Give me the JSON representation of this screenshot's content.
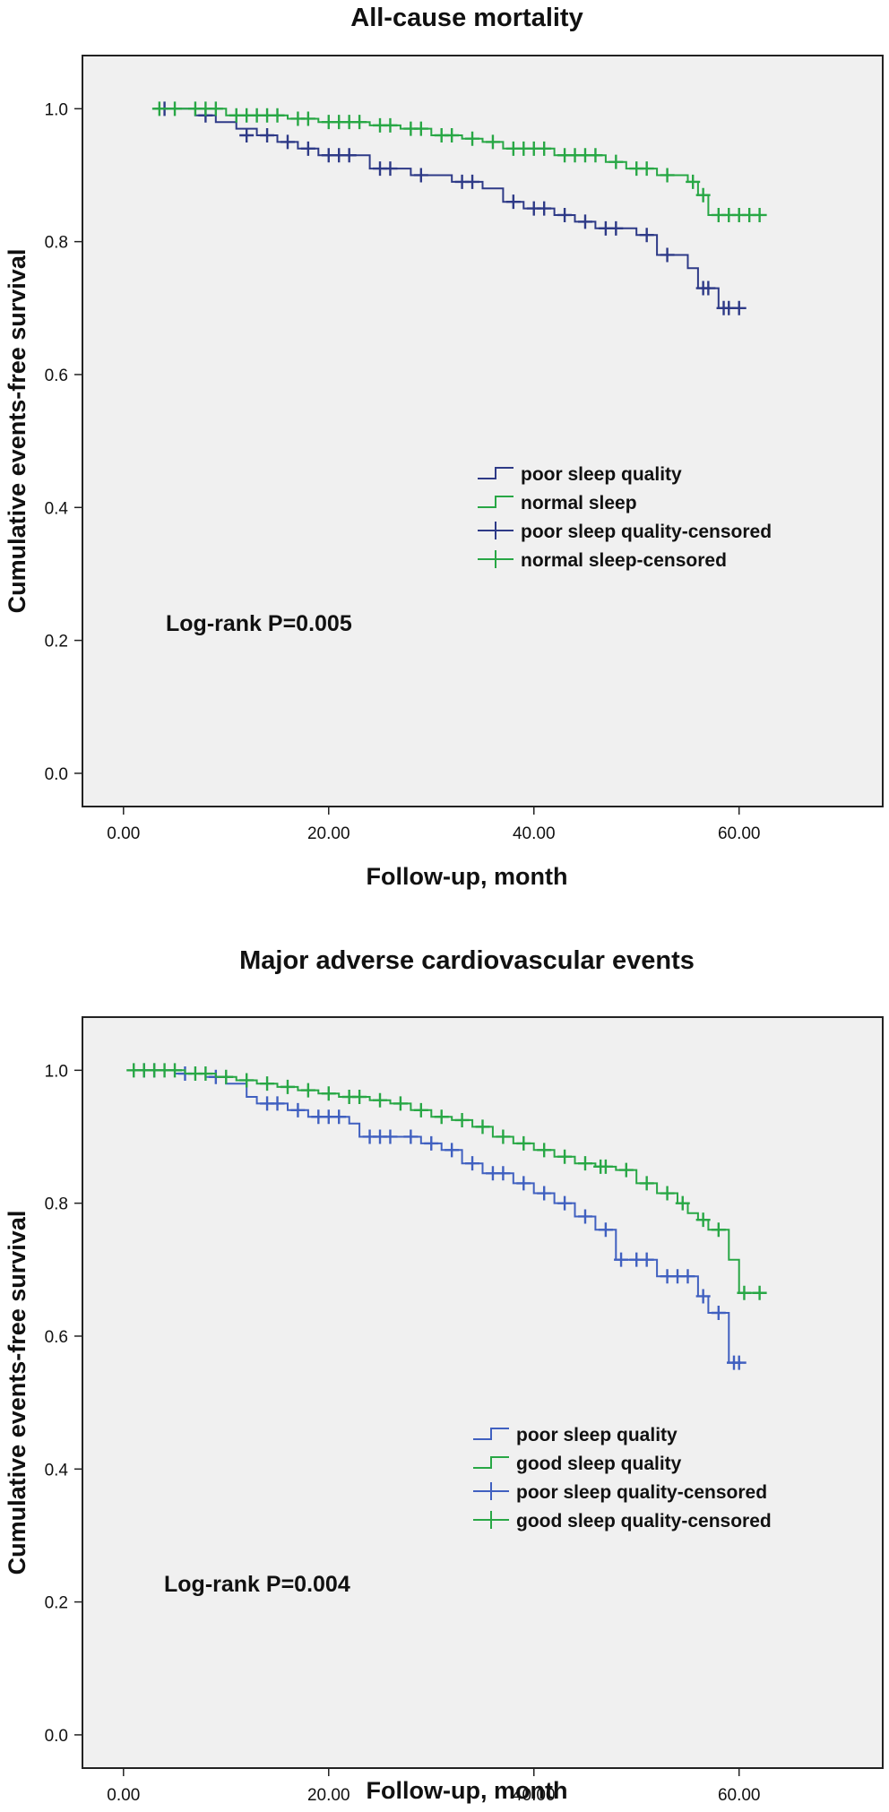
{
  "chart_data": [
    {
      "type": "line",
      "subtype": "kaplan-meier",
      "title": "All-cause mortality",
      "xlabel": "Follow-up, month",
      "ylabel": "Cumulative events-free survival",
      "xlim": [
        -4,
        74
      ],
      "ylim": [
        -0.05,
        1.08
      ],
      "xticks": [
        0,
        20,
        40,
        60
      ],
      "xtick_labels": [
        "0.00",
        "20.00",
        "40.00",
        "60.00"
      ],
      "yticks": [
        0.0,
        0.2,
        0.4,
        0.6,
        0.8,
        1.0
      ],
      "ytick_labels": [
        "0.0",
        "0.2",
        "0.4",
        "0.6",
        "0.8",
        "1.0"
      ],
      "annotation": "Log-rank P=0.005",
      "legend_position": "center-right",
      "legend": [
        {
          "label": "poor sleep quality",
          "series": 0,
          "kind": "line"
        },
        {
          "label": "normal sleep",
          "series": 1,
          "kind": "line"
        },
        {
          "label": "poor sleep quality-censored",
          "series": 0,
          "kind": "censor"
        },
        {
          "label": "normal sleep-censored",
          "series": 1,
          "kind": "censor"
        }
      ],
      "series": [
        {
          "name": "poor sleep quality",
          "color": "#2e3a87",
          "steps": [
            [
              3,
              1.0
            ],
            [
              7,
              0.99
            ],
            [
              9,
              0.98
            ],
            [
              11,
              0.97
            ],
            [
              13,
              0.96
            ],
            [
              15,
              0.95
            ],
            [
              17,
              0.94
            ],
            [
              19,
              0.93
            ],
            [
              24,
              0.91
            ],
            [
              28,
              0.9
            ],
            [
              32,
              0.89
            ],
            [
              35,
              0.88
            ],
            [
              37,
              0.86
            ],
            [
              39,
              0.85
            ],
            [
              42,
              0.84
            ],
            [
              44,
              0.83
            ],
            [
              46,
              0.82
            ],
            [
              50,
              0.81
            ],
            [
              52,
              0.78
            ],
            [
              55,
              0.76
            ],
            [
              56,
              0.73
            ],
            [
              58,
              0.7
            ],
            [
              60,
              0.7
            ]
          ],
          "censored": [
            [
              4,
              1.0
            ],
            [
              8,
              0.99
            ],
            [
              12,
              0.96
            ],
            [
              14,
              0.96
            ],
            [
              16,
              0.95
            ],
            [
              18,
              0.94
            ],
            [
              20,
              0.93
            ],
            [
              21,
              0.93
            ],
            [
              22,
              0.93
            ],
            [
              25,
              0.91
            ],
            [
              26,
              0.91
            ],
            [
              29,
              0.9
            ],
            [
              33,
              0.89
            ],
            [
              34,
              0.89
            ],
            [
              38,
              0.86
            ],
            [
              40,
              0.85
            ],
            [
              41,
              0.85
            ],
            [
              43,
              0.84
            ],
            [
              45,
              0.83
            ],
            [
              47,
              0.82
            ],
            [
              48,
              0.82
            ],
            [
              51,
              0.81
            ],
            [
              53,
              0.78
            ],
            [
              56.5,
              0.73
            ],
            [
              57,
              0.73
            ],
            [
              58.5,
              0.7
            ],
            [
              59,
              0.7
            ],
            [
              60,
              0.7
            ]
          ]
        },
        {
          "name": "normal sleep",
          "color": "#28a745",
          "steps": [
            [
              3,
              1.0
            ],
            [
              10,
              0.99
            ],
            [
              16,
              0.985
            ],
            [
              19,
              0.98
            ],
            [
              24,
              0.975
            ],
            [
              27,
              0.97
            ],
            [
              30,
              0.96
            ],
            [
              33,
              0.955
            ],
            [
              35,
              0.95
            ],
            [
              37,
              0.94
            ],
            [
              42,
              0.93
            ],
            [
              47,
              0.92
            ],
            [
              49,
              0.91
            ],
            [
              52,
              0.9
            ],
            [
              55,
              0.89
            ],
            [
              56,
              0.87
            ],
            [
              57,
              0.84
            ],
            [
              62,
              0.84
            ]
          ],
          "censored": [
            [
              3.5,
              1.0
            ],
            [
              5,
              1.0
            ],
            [
              7,
              1.0
            ],
            [
              8,
              1.0
            ],
            [
              9,
              1.0
            ],
            [
              11,
              0.99
            ],
            [
              12,
              0.99
            ],
            [
              13,
              0.99
            ],
            [
              14,
              0.99
            ],
            [
              15,
              0.99
            ],
            [
              17,
              0.985
            ],
            [
              18,
              0.985
            ],
            [
              20,
              0.98
            ],
            [
              21,
              0.98
            ],
            [
              22,
              0.98
            ],
            [
              23,
              0.98
            ],
            [
              25,
              0.975
            ],
            [
              26,
              0.975
            ],
            [
              28,
              0.97
            ],
            [
              29,
              0.97
            ],
            [
              31,
              0.96
            ],
            [
              32,
              0.96
            ],
            [
              34,
              0.955
            ],
            [
              36,
              0.95
            ],
            [
              38,
              0.94
            ],
            [
              39,
              0.94
            ],
            [
              40,
              0.94
            ],
            [
              41,
              0.94
            ],
            [
              43,
              0.93
            ],
            [
              44,
              0.93
            ],
            [
              45,
              0.93
            ],
            [
              46,
              0.93
            ],
            [
              48,
              0.92
            ],
            [
              50,
              0.91
            ],
            [
              51,
              0.91
            ],
            [
              53,
              0.9
            ],
            [
              55.5,
              0.89
            ],
            [
              56.5,
              0.87
            ],
            [
              58,
              0.84
            ],
            [
              59,
              0.84
            ],
            [
              60,
              0.84
            ],
            [
              61,
              0.84
            ],
            [
              62,
              0.84
            ]
          ]
        }
      ]
    },
    {
      "type": "line",
      "subtype": "kaplan-meier",
      "title": "Major adverse cardiovascular events",
      "xlabel": "Follow-up, month",
      "ylabel": "Cumulative events-free survival",
      "xlim": [
        -4,
        74
      ],
      "ylim": [
        -0.05,
        1.08
      ],
      "xticks": [
        0,
        20,
        40,
        60
      ],
      "xtick_labels": [
        "0.00",
        "20.00",
        "40.00",
        "60.00"
      ],
      "yticks": [
        0.0,
        0.2,
        0.4,
        0.6,
        0.8,
        1.0
      ],
      "ytick_labels": [
        "0.0",
        "0.2",
        "0.4",
        "0.6",
        "0.8",
        "1.0"
      ],
      "annotation": "Log-rank P=0.004",
      "legend_position": "center-right",
      "legend": [
        {
          "label": "poor sleep quality",
          "series": 0,
          "kind": "line"
        },
        {
          "label": "good sleep quality",
          "series": 1,
          "kind": "line"
        },
        {
          "label": "poor sleep quality-censored",
          "series": 0,
          "kind": "censor"
        },
        {
          "label": "good sleep quality-censored",
          "series": 1,
          "kind": "censor"
        }
      ],
      "series": [
        {
          "name": "poor sleep quality",
          "color": "#4060c0",
          "steps": [
            [
              1,
              1.0
            ],
            [
              5,
              0.995
            ],
            [
              8,
              0.99
            ],
            [
              10,
              0.98
            ],
            [
              12,
              0.96
            ],
            [
              13,
              0.95
            ],
            [
              16,
              0.94
            ],
            [
              18,
              0.93
            ],
            [
              22,
              0.92
            ],
            [
              23,
              0.9
            ],
            [
              29,
              0.89
            ],
            [
              31,
              0.88
            ],
            [
              33,
              0.86
            ],
            [
              35,
              0.845
            ],
            [
              38,
              0.83
            ],
            [
              40,
              0.815
            ],
            [
              42,
              0.8
            ],
            [
              44,
              0.78
            ],
            [
              46,
              0.76
            ],
            [
              48,
              0.715
            ],
            [
              52,
              0.69
            ],
            [
              56,
              0.66
            ],
            [
              57,
              0.635
            ],
            [
              59,
              0.56
            ],
            [
              60,
              0.56
            ]
          ],
          "censored": [
            [
              2,
              1.0
            ],
            [
              3,
              1.0
            ],
            [
              6,
              0.995
            ],
            [
              9,
              0.99
            ],
            [
              14,
              0.95
            ],
            [
              15,
              0.95
            ],
            [
              17,
              0.94
            ],
            [
              19,
              0.93
            ],
            [
              20,
              0.93
            ],
            [
              21,
              0.93
            ],
            [
              24,
              0.9
            ],
            [
              25,
              0.9
            ],
            [
              26,
              0.9
            ],
            [
              28,
              0.9
            ],
            [
              30,
              0.89
            ],
            [
              32,
              0.88
            ],
            [
              34,
              0.86
            ],
            [
              36,
              0.845
            ],
            [
              37,
              0.845
            ],
            [
              39,
              0.83
            ],
            [
              41,
              0.815
            ],
            [
              43,
              0.8
            ],
            [
              45,
              0.78
            ],
            [
              47,
              0.76
            ],
            [
              48.5,
              0.715
            ],
            [
              50,
              0.715
            ],
            [
              51,
              0.715
            ],
            [
              53,
              0.69
            ],
            [
              54,
              0.69
            ],
            [
              55,
              0.69
            ],
            [
              56.5,
              0.66
            ],
            [
              58,
              0.635
            ],
            [
              59.5,
              0.56
            ],
            [
              60,
              0.56
            ]
          ]
        },
        {
          "name": "good sleep quality",
          "color": "#28a745",
          "steps": [
            [
              1,
              1.0
            ],
            [
              6,
              0.995
            ],
            [
              9,
              0.99
            ],
            [
              11,
              0.985
            ],
            [
              13,
              0.98
            ],
            [
              15,
              0.975
            ],
            [
              17,
              0.97
            ],
            [
              19,
              0.965
            ],
            [
              21,
              0.96
            ],
            [
              24,
              0.955
            ],
            [
              26,
              0.95
            ],
            [
              28,
              0.94
            ],
            [
              30,
              0.93
            ],
            [
              32,
              0.925
            ],
            [
              34,
              0.915
            ],
            [
              36,
              0.9
            ],
            [
              38,
              0.89
            ],
            [
              40,
              0.88
            ],
            [
              42,
              0.87
            ],
            [
              44,
              0.86
            ],
            [
              46,
              0.855
            ],
            [
              48,
              0.85
            ],
            [
              50,
              0.83
            ],
            [
              52,
              0.815
            ],
            [
              54,
              0.8
            ],
            [
              55,
              0.785
            ],
            [
              56,
              0.775
            ],
            [
              57,
              0.76
            ],
            [
              59,
              0.715
            ],
            [
              60,
              0.665
            ],
            [
              62,
              0.665
            ]
          ],
          "censored": [
            [
              1,
              1.0
            ],
            [
              2,
              1.0
            ],
            [
              3,
              1.0
            ],
            [
              4,
              1.0
            ],
            [
              5,
              1.0
            ],
            [
              7,
              0.995
            ],
            [
              8,
              0.995
            ],
            [
              10,
              0.99
            ],
            [
              12,
              0.985
            ],
            [
              14,
              0.98
            ],
            [
              16,
              0.975
            ],
            [
              18,
              0.97
            ],
            [
              20,
              0.965
            ],
            [
              22,
              0.96
            ],
            [
              23,
              0.96
            ],
            [
              25,
              0.955
            ],
            [
              27,
              0.95
            ],
            [
              29,
              0.94
            ],
            [
              31,
              0.93
            ],
            [
              33,
              0.925
            ],
            [
              35,
              0.915
            ],
            [
              37,
              0.9
            ],
            [
              39,
              0.89
            ],
            [
              41,
              0.88
            ],
            [
              43,
              0.87
            ],
            [
              45,
              0.86
            ],
            [
              46.5,
              0.855
            ],
            [
              47,
              0.855
            ],
            [
              49,
              0.85
            ],
            [
              51,
              0.83
            ],
            [
              53,
              0.815
            ],
            [
              54.5,
              0.8
            ],
            [
              56.5,
              0.775
            ],
            [
              58,
              0.76
            ],
            [
              60.5,
              0.665
            ],
            [
              62,
              0.665
            ]
          ]
        }
      ]
    }
  ]
}
